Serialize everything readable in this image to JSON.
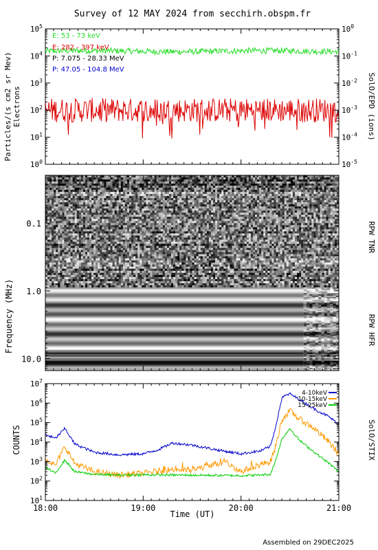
{
  "title": "Survey of 12 MAY 2024 from secchirh.obspm.fr",
  "footer": "Assembled on 29DEC2025",
  "colors": {
    "green": "#22dd22",
    "red": "#dd0000",
    "black": "#000000",
    "blue": "#0000cc",
    "orange": "#ff9900",
    "stix_green": "#00cc00"
  },
  "chart_data": [
    {
      "type": "line",
      "panel": "particles",
      "ylabel": "Particles/(s cm2 sr Mev)",
      "ylabel2": "Electrons",
      "right_label": "SolO/EPD (ions)",
      "y_scale": "log",
      "ylim": [
        1,
        100000
      ],
      "y_ticks": [
        "10^0",
        "10^1",
        "10^2",
        "10^3",
        "10^4",
        "10^5"
      ],
      "y2_scale": "log",
      "y2lim": [
        1e-05,
        1
      ],
      "y2_ticks": [
        "10^-5",
        "10^-4",
        "10^-3",
        "10^-2",
        "10^-1",
        "10^0"
      ],
      "x_range_hours": [
        18,
        21
      ],
      "legend": [
        {
          "label": "E: 53 - 73 keV",
          "color": "#22dd22"
        },
        {
          "label": "E: 282 - 397 keV",
          "color": "#dd0000"
        },
        {
          "label": "P: 7.075 - 28.33 MeV",
          "color": "#000000"
        },
        {
          "label": "P: 47.05 - 104.8 MeV",
          "color": "#0000cc"
        }
      ],
      "series": [
        {
          "name": "E: 53 - 73 keV",
          "color": "#22dd22",
          "level": 15000,
          "noise": "low"
        },
        {
          "name": "E: 282 - 397 keV",
          "color": "#dd0000",
          "level": 100,
          "noise": "high"
        }
      ]
    },
    {
      "type": "heatmap",
      "panel": "radio",
      "ylabel": "Frequency (MHz)",
      "y_ticks": [
        "0.1",
        "1.0",
        "10.0"
      ],
      "right_labels": [
        "RPW TNR",
        "RPW HFR"
      ],
      "x_range_hours": [
        18,
        21
      ]
    },
    {
      "type": "line",
      "panel": "stix",
      "ylabel": "COUNTS",
      "right_label": "SolO/STIX",
      "xlabel": "Time (UT)",
      "x_ticks": [
        "18:00",
        "19:00",
        "20:00",
        "21:00"
      ],
      "y_scale": "log",
      "ylim": [
        10,
        10000000
      ],
      "y_ticks": [
        "10^1",
        "10^2",
        "10^3",
        "10^4",
        "10^5",
        "10^6",
        "10^7"
      ],
      "legend": [
        {
          "label": "4-10keV",
          "color": "#0000cc"
        },
        {
          "label": "10-15keV",
          "color": "#ff9900"
        },
        {
          "label": "15-25keV",
          "color": "#00cc00"
        }
      ],
      "series": [
        {
          "name": "4-10keV",
          "color": "#0000cc",
          "x": [
            18.0,
            18.1,
            18.2,
            18.3,
            18.5,
            18.75,
            19.0,
            19.15,
            19.3,
            19.5,
            19.75,
            19.9,
            20.0,
            20.1,
            20.2,
            20.3,
            20.35,
            20.42,
            20.5,
            20.6,
            20.75,
            20.9,
            21.0
          ],
          "y": [
            25000,
            15000,
            50000,
            8000,
            3000,
            2200,
            2500,
            4000,
            9000,
            7000,
            4000,
            3000,
            2500,
            3000,
            3500,
            6000,
            50000,
            2000000,
            3000000,
            1500000,
            500000,
            200000,
            80000
          ]
        },
        {
          "name": "10-15keV",
          "color": "#ff9900",
          "x": [
            18.0,
            18.1,
            18.2,
            18.3,
            18.5,
            18.75,
            19.0,
            19.3,
            19.5,
            19.7,
            19.85,
            20.0,
            20.15,
            20.3,
            20.35,
            20.42,
            20.5,
            20.6,
            20.75,
            20.9,
            21.0
          ],
          "y": [
            1500,
            600,
            6000,
            800,
            300,
            200,
            250,
            400,
            350,
            700,
            900,
            300,
            600,
            1000,
            5000,
            150000,
            400000,
            150000,
            50000,
            10000,
            2500
          ]
        },
        {
          "name": "15-25keV",
          "color": "#00cc00",
          "x": [
            18.0,
            18.1,
            18.2,
            18.3,
            18.5,
            18.75,
            19.0,
            19.5,
            20.0,
            20.15,
            20.3,
            20.35,
            20.42,
            20.5,
            20.6,
            20.75,
            20.9,
            21.0
          ],
          "y": [
            500,
            250,
            1200,
            300,
            220,
            200,
            210,
            200,
            190,
            200,
            220,
            1000,
            15000,
            50000,
            12000,
            3000,
            800,
            300
          ]
        }
      ]
    }
  ]
}
